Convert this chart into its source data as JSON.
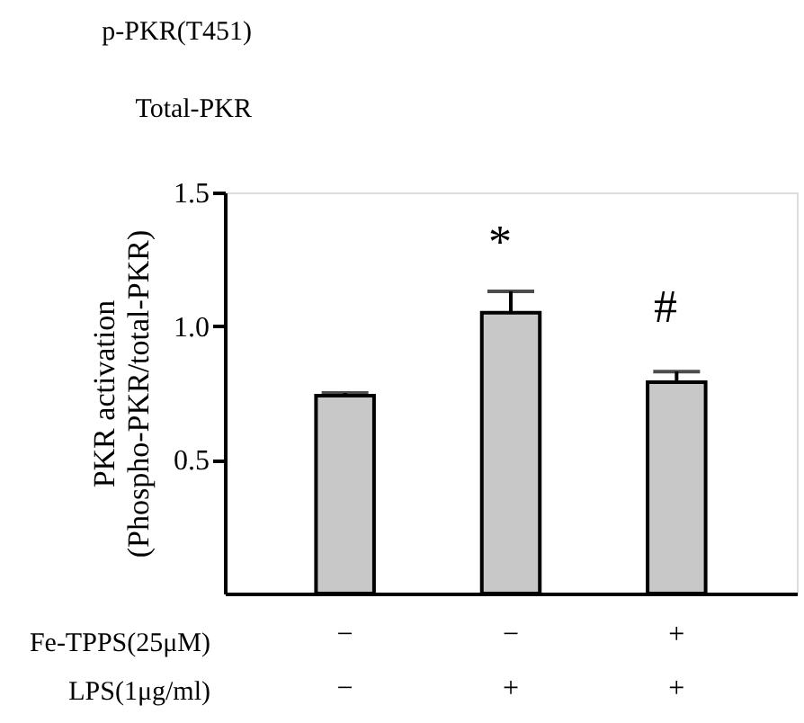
{
  "chart_data": {
    "type": "bar",
    "categories": [
      "−\n−",
      "−\n+",
      "+\n+"
    ],
    "values": [
      0.74,
      1.05,
      0.79
    ],
    "errors": [
      [
        0.74,
        0.75
      ],
      [
        1.05,
        1.13
      ],
      [
        0.79,
        0.83
      ]
    ],
    "color": "#c8c8c8",
    "ylabel": "PKR activation\n(Phospho-PKR/total-PKR)",
    "ylim": [
      0,
      1.5
    ],
    "yticks": [
      {
        "value": 0.5,
        "label": "0.5"
      },
      {
        "value": 1.0,
        "label": "1.0"
      },
      {
        "value": 1.5,
        "label": "1.5"
      }
    ],
    "grid": false,
    "annotations": [
      "*",
      "#",
      "p-PKR(T451)",
      "Total-PKR",
      "Fe-TPPS(25μM)",
      "LPS(1μg/ml)"
    ]
  }
}
